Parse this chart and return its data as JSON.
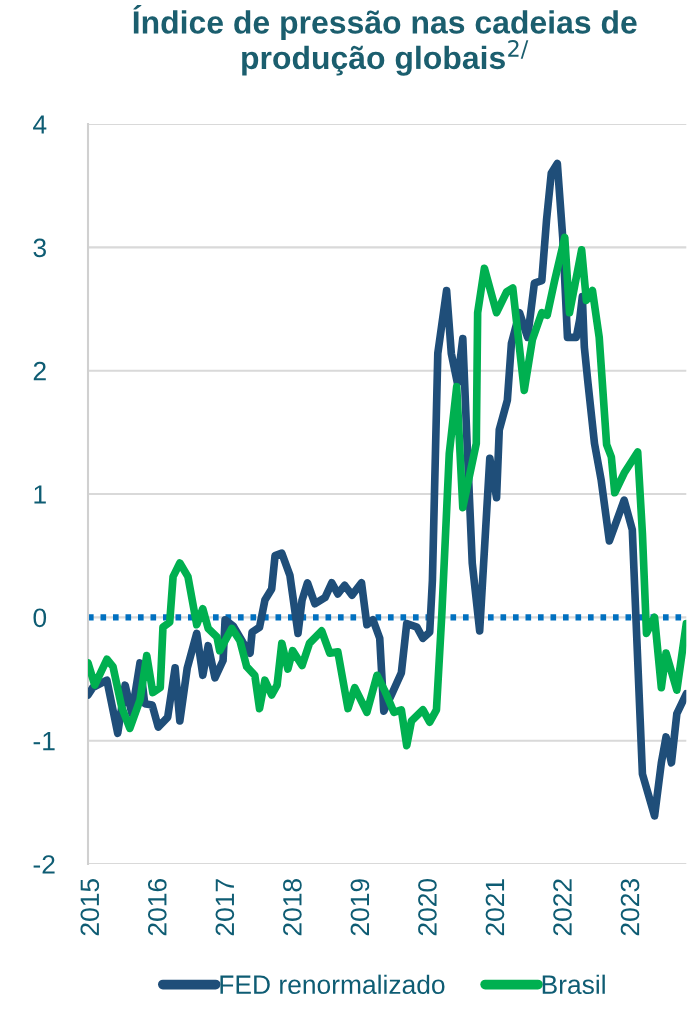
{
  "chart_data": {
    "type": "line",
    "title": "Índice de pressão nas cadeias de produção globais$^{2/}$",
    "xlim": [
      2014.94,
      2023.8
    ],
    "ylim": [
      -2,
      4
    ],
    "yticks": [
      -2,
      -1,
      0,
      1,
      2,
      3,
      4
    ],
    "xticks": [
      2015,
      2016,
      2017,
      2018,
      2019,
      2020,
      2021,
      2022,
      2023
    ],
    "grid": "y",
    "legend": "bottom",
    "line_style": "solid",
    "marker": "none",
    "ref_lines": [
      {
        "axis": "y",
        "value": 0,
        "color": "#0070c0",
        "line_style": "dotted"
      }
    ],
    "series": [
      {
        "name": "FED renormalizado",
        "color": "#1f4e79",
        "x": [
          2014.94,
          2015.01,
          2015.22,
          2015.38,
          2015.49,
          2015.59,
          2015.71,
          2015.78,
          2015.89,
          2015.98,
          2016.12,
          2016.23,
          2016.3,
          2016.41,
          2016.55,
          2016.64,
          2016.72,
          2016.82,
          2016.94,
          2016.97,
          2017.09,
          2017.23,
          2017.34,
          2017.37,
          2017.48,
          2017.56,
          2017.66,
          2017.71,
          2017.81,
          2017.93,
          2018.05,
          2018.11,
          2018.19,
          2018.3,
          2018.45,
          2018.55,
          2018.64,
          2018.74,
          2018.85,
          2018.99,
          2019.07,
          2019.16,
          2019.26,
          2019.32,
          2019.44,
          2019.58,
          2019.66,
          2019.81,
          2019.9,
          2020.0,
          2020.04,
          2020.12,
          2020.25,
          2020.32,
          2020.41,
          2020.49,
          2020.56,
          2020.63,
          2020.74,
          2020.89,
          2020.99,
          2021.03,
          2021.15,
          2021.21,
          2021.33,
          2021.45,
          2021.55,
          2021.66,
          2021.73,
          2021.8,
          2021.89,
          2021.97,
          2022.04,
          2022.17,
          2022.22,
          2022.26,
          2022.29,
          2022.34,
          2022.44,
          2022.54,
          2022.66,
          2022.88,
          2023.0,
          2023.15,
          2023.33,
          2023.43,
          2023.5,
          2023.58,
          2023.66,
          2023.8
        ],
        "values": [
          -0.63,
          -0.57,
          -0.51,
          -0.94,
          -0.55,
          -0.78,
          -0.37,
          -0.7,
          -0.71,
          -0.89,
          -0.81,
          -0.41,
          -0.84,
          -0.41,
          -0.13,
          -0.47,
          -0.23,
          -0.49,
          -0.35,
          -0.02,
          -0.07,
          -0.2,
          -0.29,
          -0.12,
          -0.08,
          0.14,
          0.23,
          0.5,
          0.52,
          0.34,
          -0.13,
          0.14,
          0.28,
          0.11,
          0.16,
          0.28,
          0.19,
          0.26,
          0.18,
          0.28,
          -0.06,
          -0.02,
          -0.17,
          -0.76,
          -0.62,
          -0.45,
          -0.05,
          -0.08,
          -0.17,
          -0.12,
          0.3,
          2.14,
          2.65,
          2.14,
          1.9,
          2.26,
          1.33,
          0.44,
          -0.11,
          1.29,
          0.97,
          1.52,
          1.76,
          2.22,
          2.47,
          2.27,
          2.71,
          2.73,
          3.22,
          3.6,
          3.68,
          3.08,
          2.27,
          2.27,
          2.41,
          2.6,
          2.19,
          1.92,
          1.41,
          1.11,
          0.62,
          0.95,
          0.71,
          -1.27,
          -1.61,
          -1.18,
          -0.97,
          -1.18,
          -0.78,
          -0.62
        ]
      },
      {
        "name": "Brasil",
        "color": "#00b050",
        "x": [
          2014.94,
          2015.04,
          2015.22,
          2015.31,
          2015.44,
          2015.56,
          2015.71,
          2015.81,
          2015.9,
          2016.01,
          2016.05,
          2016.15,
          2016.2,
          2016.3,
          2016.42,
          2016.55,
          2016.64,
          2016.72,
          2016.85,
          2016.89,
          2017.07,
          2017.19,
          2017.29,
          2017.41,
          2017.48,
          2017.56,
          2017.66,
          2017.74,
          2017.81,
          2017.9,
          2017.97,
          2018.11,
          2018.22,
          2018.4,
          2018.52,
          2018.64,
          2018.79,
          2018.89,
          2019.07,
          2019.22,
          2019.33,
          2019.47,
          2019.58,
          2019.66,
          2019.73,
          2019.9,
          2020.0,
          2020.1,
          2020.18,
          2020.29,
          2020.4,
          2020.49,
          2020.69,
          2020.71,
          2020.81,
          2020.99,
          2021.14,
          2021.23,
          2021.4,
          2021.52,
          2021.66,
          2021.74,
          2021.85,
          2022.0,
          2022.07,
          2022.25,
          2022.32,
          2022.41,
          2022.51,
          2022.62,
          2022.69,
          2022.74,
          2022.88,
          2023.08,
          2023.15,
          2023.21,
          2023.33,
          2023.43,
          2023.5,
          2023.66,
          2023.8
        ],
        "values": [
          -0.37,
          -0.55,
          -0.34,
          -0.4,
          -0.73,
          -0.9,
          -0.67,
          -0.31,
          -0.61,
          -0.57,
          -0.08,
          -0.04,
          0.33,
          0.44,
          0.33,
          -0.06,
          0.07,
          -0.09,
          -0.16,
          -0.27,
          -0.09,
          -0.19,
          -0.4,
          -0.47,
          -0.74,
          -0.51,
          -0.63,
          -0.55,
          -0.21,
          -0.42,
          -0.27,
          -0.39,
          -0.21,
          -0.11,
          -0.29,
          -0.28,
          -0.74,
          -0.57,
          -0.77,
          -0.47,
          -0.59,
          -0.77,
          -0.75,
          -1.04,
          -0.84,
          -0.75,
          -0.85,
          -0.75,
          0.03,
          1.33,
          1.87,
          0.89,
          1.41,
          2.47,
          2.83,
          2.47,
          2.64,
          2.67,
          1.84,
          2.25,
          2.47,
          2.45,
          2.73,
          3.08,
          2.47,
          2.98,
          2.57,
          2.65,
          2.27,
          1.4,
          1.3,
          1.01,
          1.17,
          1.34,
          0.68,
          -0.13,
          0.0,
          -0.57,
          -0.29,
          -0.59,
          -0.05
        ]
      }
    ]
  }
}
